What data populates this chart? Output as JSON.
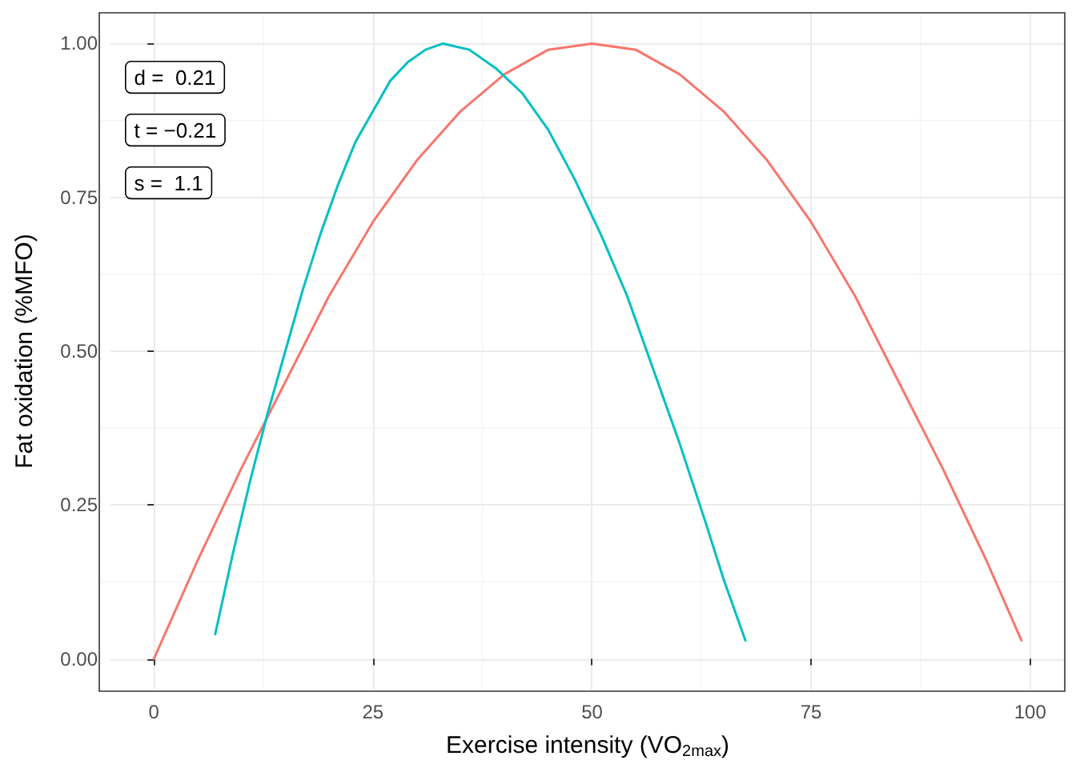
{
  "chart_data": {
    "type": "line",
    "xlabel": "Exercise intensity (VO$_{2max}$)",
    "ylabel": "Fat oxidation (%MFO)",
    "annotations": [
      "d =  0.21",
      "t = −0.21",
      "s =  1.1"
    ],
    "series": [
      {
        "color": "#f8766d",
        "x": [
          0,
          5,
          10,
          15,
          20,
          25,
          30,
          35,
          40,
          45,
          50,
          55,
          60,
          65,
          70,
          75,
          80,
          85,
          90,
          95,
          99
        ],
        "values": [
          0,
          0.16,
          0.31,
          0.45,
          0.59,
          0.71,
          0.81,
          0.89,
          0.95,
          0.99,
          1,
          0.99,
          0.95,
          0.89,
          0.81,
          0.71,
          0.59,
          0.45,
          0.31,
          0.16,
          0.03
        ]
      },
      {
        "color": "#00bfc4",
        "x": [
          7,
          9,
          11,
          13,
          15,
          17,
          19,
          21,
          23,
          25,
          27,
          29,
          31,
          33,
          36,
          39,
          42,
          45,
          48,
          51,
          54,
          57,
          60,
          63,
          65,
          67.5
        ],
        "values": [
          0.04,
          0.17,
          0.29,
          0.4,
          0.5,
          0.6,
          0.69,
          0.77,
          0.84,
          0.89,
          0.94,
          0.97,
          0.99,
          1,
          0.99,
          0.96,
          0.92,
          0.86,
          0.78,
          0.69,
          0.59,
          0.47,
          0.35,
          0.22,
          0.13,
          0.03
        ]
      }
    ],
    "xlim": [
      -4.95,
      103.95
    ],
    "xticks": [
      0,
      25,
      50,
      75,
      100
    ],
    "ylim": [
      -0.05,
      1.05
    ],
    "yticks": [
      {
        "value": 0,
        "label": "0.00"
      },
      {
        "value": 0.25,
        "label": "0.25"
      },
      {
        "value": 0.5,
        "label": "0.50"
      },
      {
        "value": 0.75,
        "label": "0.75"
      },
      {
        "value": 1,
        "label": "1.00"
      }
    ],
    "grid": true,
    "marker": "none",
    "line_style": "solid"
  }
}
